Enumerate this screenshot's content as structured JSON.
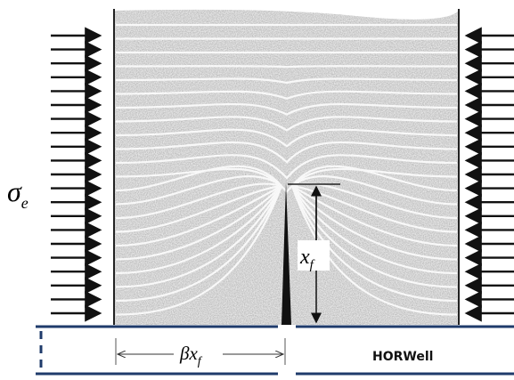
{
  "labels": {
    "stress": "σ",
    "stress_sub": "e",
    "fracture_length": "x",
    "fracture_length_sub": "f",
    "spacing": "βx",
    "spacing_sub": "f",
    "well": "HORWell"
  }
}
